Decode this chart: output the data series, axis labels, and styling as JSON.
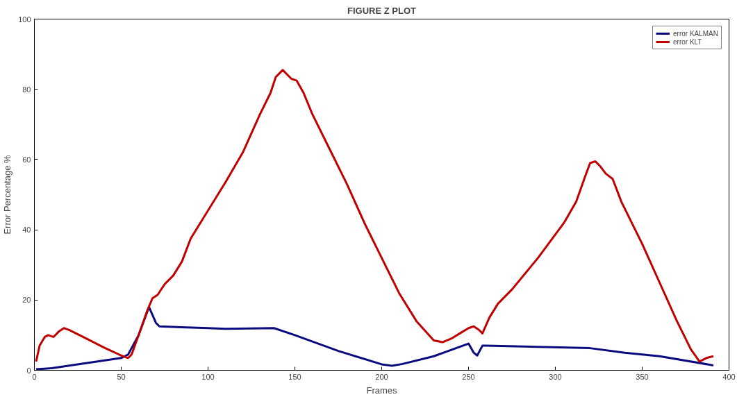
{
  "chart_data": {
    "type": "line",
    "title": "FIGURE Z PLOT",
    "xlabel": "Frames",
    "ylabel": "Error Percentage %",
    "xlim": [
      0,
      400
    ],
    "ylim": [
      0,
      100
    ],
    "xticks": [
      0,
      50,
      100,
      150,
      200,
      250,
      300,
      350,
      400
    ],
    "yticks": [
      0,
      20,
      40,
      60,
      80,
      100
    ],
    "grid": false,
    "legend": "top right",
    "line_style": "solid",
    "marker": "none",
    "series": [
      {
        "name": "error KALMAN",
        "color": "#0a0a80",
        "x": [
          1,
          10,
          50,
          54,
          60,
          66,
          70,
          72,
          100,
          110,
          138,
          150,
          175,
          200,
          206,
          212,
          230,
          250,
          253,
          255,
          258,
          260,
          320,
          340,
          360,
          391
        ],
        "values": [
          0.3,
          0.6,
          3.5,
          4.5,
          10,
          18,
          13.5,
          12.5,
          12,
          11.8,
          12,
          10,
          5.5,
          1.7,
          1.3,
          1.8,
          4,
          7.6,
          5,
          4.2,
          7,
          7,
          6.3,
          5,
          4,
          1.4
        ]
      },
      {
        "name": "error KLT",
        "color": "#c00000",
        "x": [
          1,
          3,
          6,
          8,
          11,
          14,
          17,
          20,
          30,
          40,
          50,
          54,
          56,
          60,
          65,
          68,
          71,
          75,
          80,
          85,
          90,
          100,
          110,
          120,
          130,
          136,
          139,
          143,
          146,
          148,
          151,
          155,
          160,
          170,
          180,
          190,
          200,
          210,
          220,
          230,
          235,
          240,
          245,
          250,
          253,
          256,
          258,
          262,
          267,
          275,
          290,
          305,
          312,
          317,
          320,
          323,
          326,
          329,
          333,
          338,
          350,
          360,
          370,
          378,
          383,
          387,
          391
        ],
        "values": [
          2.5,
          7,
          9.5,
          10,
          9.5,
          11,
          12,
          11.5,
          9,
          6.5,
          4.2,
          3.5,
          4.5,
          10,
          17,
          20.5,
          21.5,
          24.5,
          27,
          31,
          37.5,
          45.5,
          53.5,
          62,
          73,
          79,
          83.5,
          85.5,
          84,
          83,
          82.5,
          79,
          73,
          63,
          53,
          42,
          32,
          22,
          14,
          8.5,
          8,
          9,
          10.5,
          12,
          12.5,
          11.5,
          10.5,
          15,
          19,
          23,
          32,
          42,
          48,
          55,
          59,
          59.5,
          58,
          56,
          54.5,
          48,
          36,
          25,
          14,
          6,
          2.5,
          3.5,
          4
        ]
      }
    ]
  }
}
